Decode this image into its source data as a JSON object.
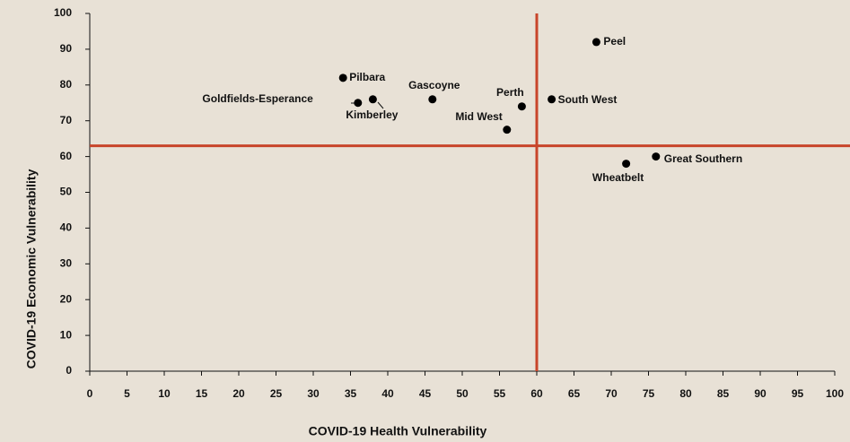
{
  "chart_data": {
    "type": "scatter",
    "x_label": "COVID-19 Health Vulnerability",
    "y_label": "COVID-19 Economic Vulnerability",
    "series": [
      {
        "color": "#000000",
        "labels": [
          "Peel",
          "Pilbara",
          "Goldfields-Esperance",
          "Kimberley",
          "Gascoyne",
          "Perth",
          "South West",
          "Mid West",
          "Great Southern",
          "Wheatbelt"
        ],
        "x": [
          68,
          34,
          36,
          38,
          46,
          58,
          62,
          56,
          76,
          72
        ],
        "values": [
          92,
          82,
          75,
          76,
          76,
          74,
          76,
          67.5,
          60,
          58
        ]
      }
    ],
    "reference_lines": {
      "x": 60,
      "y": 63,
      "color": "#c8452a"
    },
    "xlim": [
      0,
      100
    ],
    "xticks": [
      0,
      5,
      10,
      15,
      20,
      25,
      30,
      35,
      40,
      45,
      50,
      55,
      60,
      65,
      70,
      75,
      80,
      85,
      90,
      95,
      100
    ],
    "ylim": [
      0,
      100
    ],
    "yticks": [
      0,
      10,
      20,
      30,
      40,
      50,
      60,
      70,
      80,
      90,
      100
    ]
  }
}
